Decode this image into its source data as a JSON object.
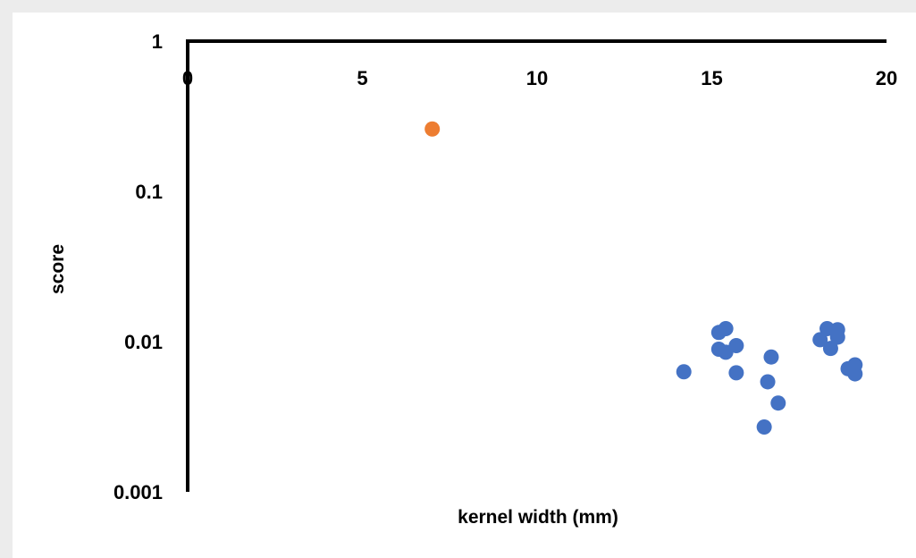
{
  "chart_data": {
    "type": "scatter",
    "title": "",
    "xlabel": "kernel width (mm)",
    "ylabel": "score",
    "xlim": [
      0,
      20
    ],
    "ylim": [
      0.001,
      1
    ],
    "y_scale": "log",
    "x_ticks": [
      "0",
      "5",
      "10",
      "15",
      "20"
    ],
    "x_tick_values": [
      0,
      5,
      10,
      15,
      20
    ],
    "y_ticks": [
      "1",
      "0.1",
      "0.01",
      "0.001"
    ],
    "y_tick_values": [
      1,
      0.1,
      0.01,
      0.001
    ],
    "x_axis_position": "top",
    "grid": false,
    "legend": "none",
    "series": [
      {
        "color": "#4472C4",
        "points": [
          {
            "x": 14.2,
            "y": 0.0063
          },
          {
            "x": 15.2,
            "y": 0.0115
          },
          {
            "x": 15.4,
            "y": 0.0122
          },
          {
            "x": 15.2,
            "y": 0.0089
          },
          {
            "x": 15.4,
            "y": 0.0085
          },
          {
            "x": 15.7,
            "y": 0.0094
          },
          {
            "x": 15.7,
            "y": 0.0062
          },
          {
            "x": 16.6,
            "y": 0.0054
          },
          {
            "x": 16.7,
            "y": 0.0079
          },
          {
            "x": 16.9,
            "y": 0.0039
          },
          {
            "x": 16.5,
            "y": 0.0027
          },
          {
            "x": 18.1,
            "y": 0.0103
          },
          {
            "x": 18.3,
            "y": 0.0122
          },
          {
            "x": 18.4,
            "y": 0.009
          },
          {
            "x": 18.6,
            "y": 0.0107
          },
          {
            "x": 18.6,
            "y": 0.012
          },
          {
            "x": 18.9,
            "y": 0.0066
          },
          {
            "x": 19.1,
            "y": 0.007
          },
          {
            "x": 19.1,
            "y": 0.0061
          }
        ]
      },
      {
        "color": "#ED7D31",
        "points": [
          {
            "x": 7.0,
            "y": 0.26
          }
        ]
      }
    ]
  }
}
